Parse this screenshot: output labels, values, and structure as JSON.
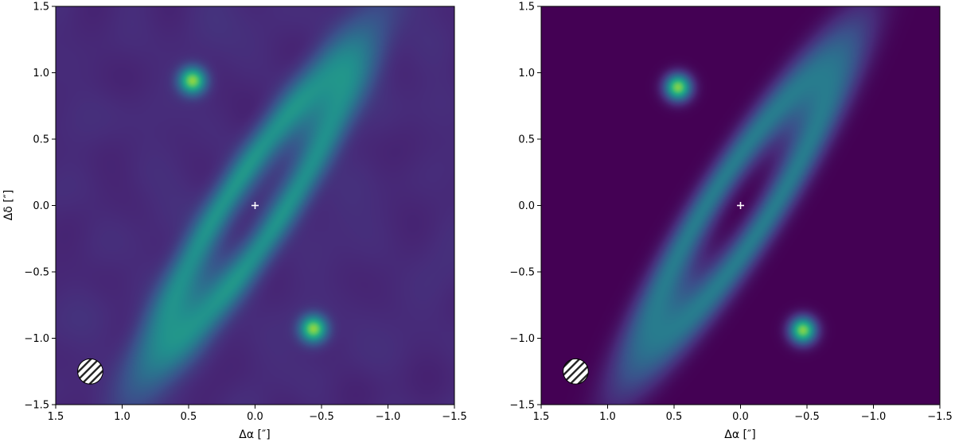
{
  "chart_data": [
    {
      "type": "heatmap",
      "panel": "left",
      "description_tag": "observed image",
      "xlabel": "Δα [″]",
      "ylabel": "Δδ [″]",
      "xlim": [
        1.5,
        -1.5
      ],
      "ylim": [
        -1.5,
        1.5
      ],
      "xticks": [
        1.5,
        1.0,
        0.5,
        0.0,
        -0.5,
        -1.0,
        -1.5
      ],
      "yticks": [
        -1.5,
        -1.0,
        -0.5,
        0.0,
        0.5,
        1.0,
        1.5
      ],
      "xtick_labels": [
        "1.5",
        "1.0",
        "0.5",
        "0.0",
        "−0.5",
        "−1.0",
        "−1.5"
      ],
      "ytick_labels": [
        "−1.5",
        "−1.0",
        "−0.5",
        "0.0",
        "0.5",
        "1.0",
        "1.5"
      ],
      "colormap": "viridis",
      "background_level": 0.12,
      "noise": true,
      "ring": {
        "center": [
          0.0,
          0.0
        ],
        "semi_major": 1.1,
        "semi_minor": 0.21,
        "major_axis_angle_deg": 123,
        "peak_level": 0.45,
        "hotspots": [
          {
            "x": 0.47,
            "y": 0.94,
            "level": 1.0
          },
          {
            "x": -0.44,
            "y": -0.93,
            "level": 1.0
          }
        ]
      },
      "center_marker": {
        "x": 0.0,
        "y": 0.0,
        "symbol": "+",
        "color": "#ffffff"
      },
      "beam": {
        "x": 1.24,
        "y": -1.25,
        "radius": 0.095,
        "hatch": true
      }
    },
    {
      "type": "heatmap",
      "panel": "right",
      "description_tag": "model image",
      "xlabel": "Δα [″]",
      "ylabel": "",
      "xlim": [
        1.5,
        -1.5
      ],
      "ylim": [
        -1.5,
        1.5
      ],
      "xticks": [
        1.5,
        1.0,
        0.5,
        0.0,
        -0.5,
        -1.0,
        -1.5
      ],
      "yticks": [
        -1.5,
        -1.0,
        -0.5,
        0.0,
        0.5,
        1.0,
        1.5
      ],
      "xtick_labels": [
        "1.5",
        "1.0",
        "0.5",
        "0.0",
        "−0.5",
        "−1.0",
        "−1.5"
      ],
      "ytick_labels": [
        "−1.5",
        "−1.0",
        "−0.5",
        "0.0",
        "0.5",
        "1.0",
        "1.5"
      ],
      "colormap": "viridis",
      "background_level": 0.0,
      "noise": false,
      "ring": {
        "center": [
          0.0,
          0.0
        ],
        "semi_major": 1.12,
        "semi_minor": 0.22,
        "major_axis_angle_deg": 123,
        "peak_level": 0.42,
        "hotspots": [
          {
            "x": 0.47,
            "y": 0.89,
            "level": 1.0
          },
          {
            "x": -0.47,
            "y": -0.94,
            "level": 1.0
          }
        ]
      },
      "center_marker": {
        "x": 0.0,
        "y": 0.0,
        "symbol": "+",
        "color": "#ffffff"
      },
      "beam": {
        "x": 1.24,
        "y": -1.25,
        "radius": 0.095,
        "hatch": true
      }
    }
  ]
}
